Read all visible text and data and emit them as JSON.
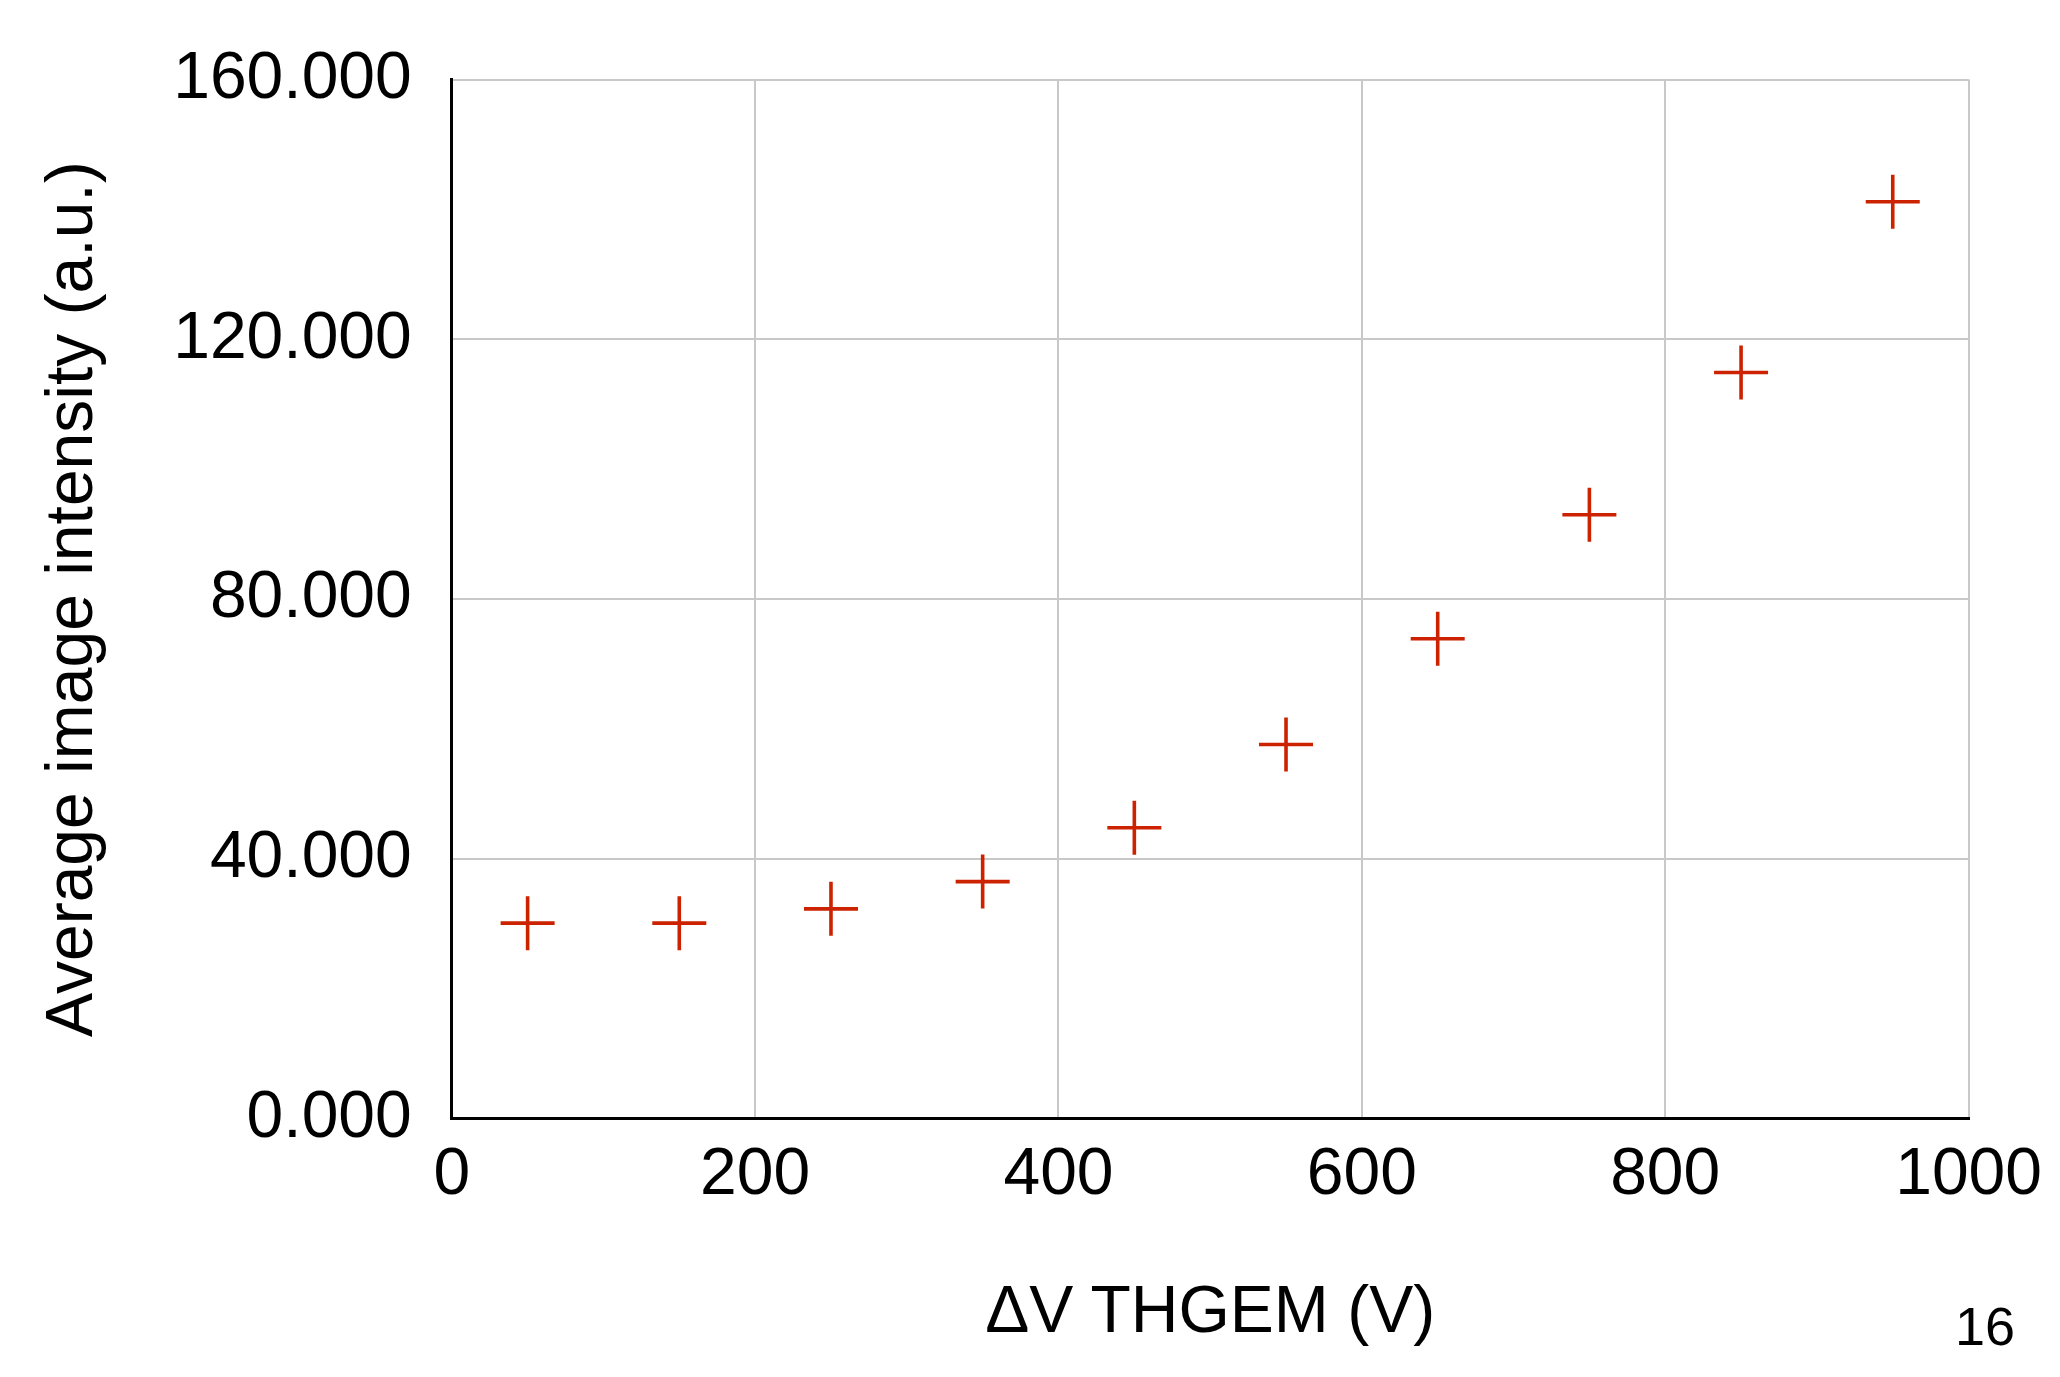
{
  "chart_data": {
    "type": "scatter",
    "xlabel": "ΔV THGEM (V)",
    "ylabel": "Average image intensity (a.u.)",
    "x": [
      50,
      150,
      250,
      350,
      450,
      550,
      650,
      750,
      850,
      950
    ],
    "series": [
      {
        "color": "#cc2200",
        "values": [
          30.1,
          30.1,
          32.3,
          36.5,
          44.8,
          57.6,
          73.9,
          93.0,
          114.9,
          141.2
        ]
      }
    ],
    "xlim": [
      0,
      1000
    ],
    "xticks": [
      0,
      200,
      400,
      600,
      800,
      1000
    ],
    "ylim": [
      0,
      160
    ],
    "yticks": [
      {
        "value": 0,
        "label": "0.000"
      },
      {
        "value": 40,
        "label": "40.000"
      },
      {
        "value": 80,
        "label": "80.000"
      },
      {
        "value": 120,
        "label": "120.000"
      },
      {
        "value": 160,
        "label": "160.000"
      }
    ],
    "grid": true,
    "legend": false,
    "marker": "cross",
    "annotations": [
      "16"
    ]
  }
}
